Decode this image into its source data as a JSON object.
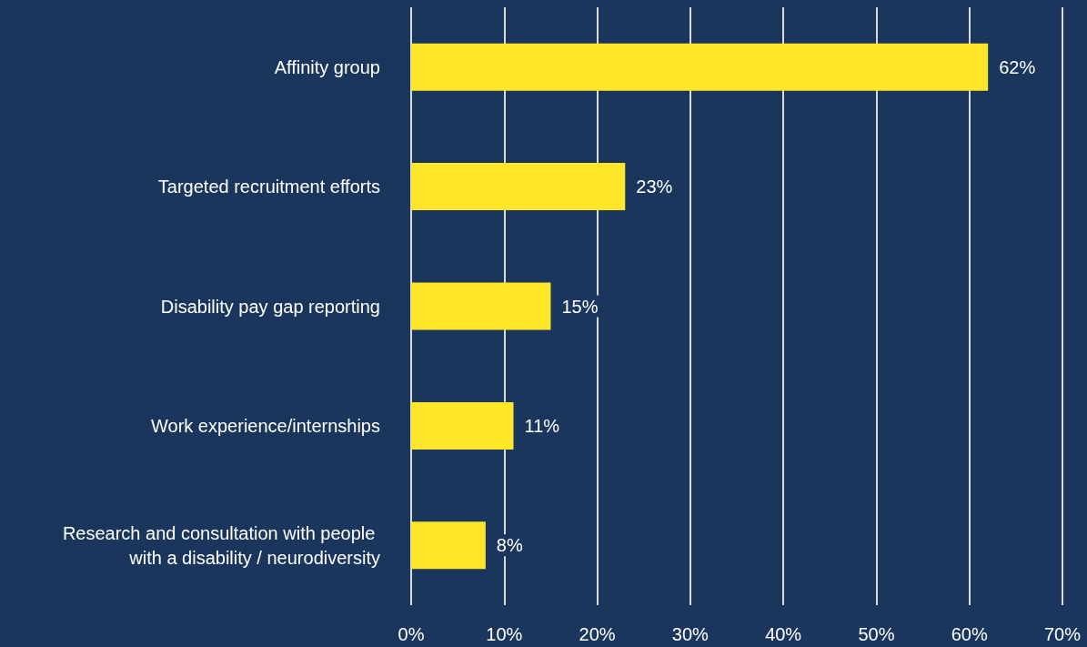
{
  "chart_data": {
    "type": "bar",
    "orientation": "horizontal",
    "categories": [
      "Affinity group",
      "Targeted recruitment efforts",
      "Disability pay gap reporting",
      "Work experience/internships",
      "Research and consultation with people with a disability / neurodiversity"
    ],
    "values": [
      62,
      23,
      15,
      11,
      8
    ],
    "value_labels": [
      "62%",
      "23%",
      "15%",
      "11%",
      "8%"
    ],
    "color": "#ffe629",
    "xlim": [
      0,
      70
    ],
    "xticks": [
      {
        "value": 0,
        "label": "0%"
      },
      {
        "value": 10,
        "label": "10%"
      },
      {
        "value": 20,
        "label": "20%"
      },
      {
        "value": 30,
        "label": "30%"
      },
      {
        "value": 40,
        "label": "40%"
      },
      {
        "value": 50,
        "label": "50%"
      },
      {
        "value": 60,
        "label": "60%"
      },
      {
        "value": 70,
        "label": "70%"
      }
    ],
    "grid": "x"
  }
}
